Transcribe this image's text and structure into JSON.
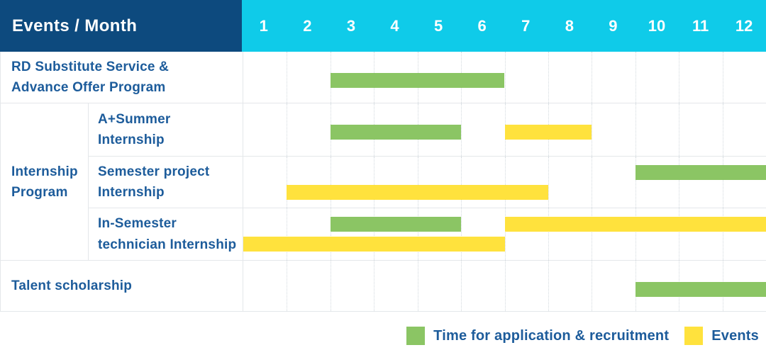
{
  "header": {
    "title": "Events / Month"
  },
  "colors": {
    "navy_header": "#0D4A7E",
    "cyan_header": "#0FCBE9",
    "label_text": "#1D5C9B",
    "bar_green": "#8BC564",
    "bar_yellow": "#FFE23D",
    "grid_line": "#E4E7EA",
    "grid_dash": "#D2D9DE"
  },
  "chart_data": {
    "type": "gantt",
    "title": "Events / Month",
    "x_axis": {
      "unit": "month",
      "ticks": [
        "1",
        "2",
        "3",
        "4",
        "5",
        "6",
        "7",
        "8",
        "9",
        "10",
        "11",
        "12"
      ],
      "range": [
        1,
        12
      ],
      "gridlines": "dotted vertical per month, solid horizontal per row"
    },
    "legend": [
      {
        "key": "application",
        "label": "Time for application & recruitment",
        "color": "#8BC564"
      },
      {
        "key": "events",
        "label": "Events",
        "color": "#FFE23D"
      }
    ],
    "rows": [
      {
        "label": "RD Substitute Service &\nAdvance Offer Program",
        "group": null,
        "bars": [
          {
            "series": "application",
            "start_month": 3,
            "end_month": 6,
            "lane": "center"
          }
        ]
      },
      {
        "label": "A+Summer\nInternship",
        "group": "Internship\nProgram",
        "bars": [
          {
            "series": "application",
            "start_month": 3,
            "end_month": 5,
            "lane": "center"
          },
          {
            "series": "events",
            "start_month": 7,
            "end_month": 8,
            "lane": "center"
          }
        ]
      },
      {
        "label": "Semester project\nInternship",
        "group": "Internship\nProgram",
        "bars": [
          {
            "series": "application",
            "start_month": 10,
            "end_month": 12,
            "lane": "top"
          },
          {
            "series": "events",
            "start_month": 2,
            "end_month": 7,
            "lane": "bottom"
          }
        ]
      },
      {
        "label": "In-Semester\ntechnician Internship",
        "group": "Internship\nProgram",
        "bars": [
          {
            "series": "application",
            "start_month": 3,
            "end_month": 5,
            "lane": "top"
          },
          {
            "series": "events",
            "start_month": 7,
            "end_month": 12,
            "lane": "top"
          },
          {
            "series": "events",
            "start_month": 1,
            "end_month": 6,
            "lane": "bottom"
          }
        ]
      },
      {
        "label": "Talent scholarship",
        "group": null,
        "bars": [
          {
            "series": "application",
            "start_month": 10,
            "end_month": 12,
            "lane": "center"
          }
        ]
      }
    ]
  }
}
